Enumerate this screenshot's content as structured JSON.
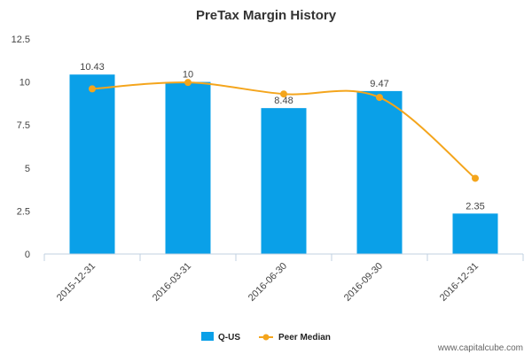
{
  "chart_data": {
    "type": "bar",
    "title": "PreTax Margin History",
    "xlabel": "",
    "ylabel": "",
    "ylim": [
      0,
      12.5
    ],
    "yticks": [
      0,
      2.5,
      5,
      7.5,
      10,
      12.5
    ],
    "ytick_labels": [
      "0",
      "2.5",
      "5",
      "7.5",
      "10",
      "12.5"
    ],
    "categories": [
      "2015-12-31",
      "2016-03-31",
      "2016-06-30",
      "2016-09-30",
      "2016-12-31"
    ],
    "series": [
      {
        "name": "Q-US",
        "type": "bar",
        "color": "#0aa0e8",
        "values": [
          10.43,
          10,
          8.48,
          9.47,
          2.35
        ],
        "labels": [
          "10.43",
          "10",
          "8.48",
          "9.47",
          "2.35"
        ]
      },
      {
        "name": "Peer Median",
        "type": "line",
        "color": "#f4a51c",
        "values": [
          9.6,
          9.97,
          9.3,
          9.1,
          4.4
        ]
      }
    ],
    "legend_position": "bottom-center",
    "grid": false
  },
  "watermark": "www.capitalcube.com"
}
